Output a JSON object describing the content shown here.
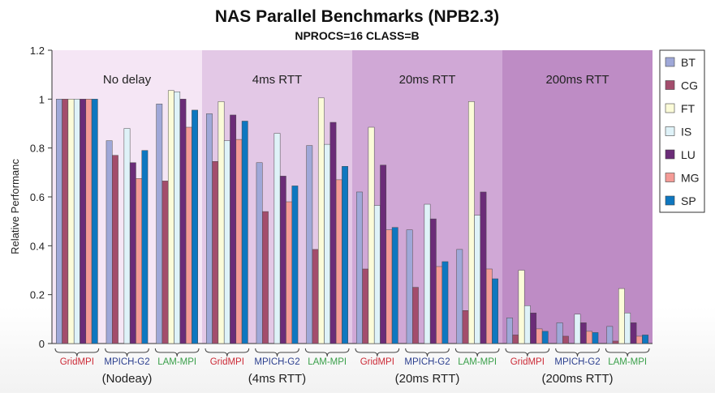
{
  "chart_data": {
    "type": "bar",
    "title": "NAS Parallel Benchmarks (NPB2.3)",
    "subtitle": "NPROCS=16   CLASS=B",
    "ylabel": "Relative Performanc",
    "xlabel": "",
    "ylim": [
      0,
      1.2
    ],
    "yticks": [
      "0",
      "0.2",
      "0.4",
      "0.6",
      "0.8",
      "1",
      "1.2"
    ],
    "grid": false,
    "legend_position": "right",
    "regions": [
      {
        "label": "No delay",
        "group_label": "(Nodeay)",
        "color": "#f5e6f5"
      },
      {
        "label": "4ms RTT",
        "group_label": "(4ms RTT)",
        "color": "#e3c8e6"
      },
      {
        "label": "20ms RTT",
        "group_label": "(20ms RTT)",
        "color": "#d0a8d6"
      },
      {
        "label": "200ms RTT",
        "group_label": "(200ms RTT)",
        "color": "#be8cc5"
      }
    ],
    "impl_labels": [
      {
        "text": "GridMPI",
        "color": "#cc2a36"
      },
      {
        "text": "MPICH-G2",
        "color": "#2b3f8f"
      },
      {
        "text": "LAM-MPI",
        "color": "#3aa04a"
      }
    ],
    "series": [
      {
        "name": "BT",
        "color": "#9fa8d8",
        "values": [
          1.0,
          0.83,
          0.98,
          0.94,
          0.74,
          0.81,
          0.62,
          0.465,
          0.385,
          0.105,
          0.085,
          0.07
        ]
      },
      {
        "name": "CG",
        "color": "#a34d6c",
        "values": [
          1.0,
          0.77,
          0.665,
          0.745,
          0.54,
          0.385,
          0.305,
          0.23,
          0.135,
          0.035,
          0.03,
          0.01
        ]
      },
      {
        "name": "FT",
        "color": "#fbfbd8",
        "values": [
          1.0,
          0.0,
          1.035,
          0.99,
          0.0,
          1.005,
          0.885,
          0.0,
          0.99,
          0.3,
          0.0,
          0.225
        ]
      },
      {
        "name": "IS",
        "color": "#dff2f8",
        "values": [
          1.0,
          0.88,
          1.03,
          0.83,
          0.86,
          0.815,
          0.565,
          0.57,
          0.525,
          0.155,
          0.12,
          0.125
        ]
      },
      {
        "name": "LU",
        "color": "#6b2c78",
        "values": [
          1.0,
          0.74,
          1.0,
          0.935,
          0.685,
          0.905,
          0.73,
          0.51,
          0.62,
          0.125,
          0.085,
          0.085
        ]
      },
      {
        "name": "MG",
        "color": "#f49b96",
        "values": [
          1.0,
          0.675,
          0.885,
          0.835,
          0.58,
          0.67,
          0.465,
          0.315,
          0.305,
          0.06,
          0.05,
          0.03
        ]
      },
      {
        "name": "SP",
        "color": "#0e77c0",
        "values": [
          1.0,
          0.79,
          0.955,
          0.91,
          0.645,
          0.725,
          0.475,
          0.335,
          0.265,
          0.05,
          0.045,
          0.035
        ]
      }
    ]
  }
}
